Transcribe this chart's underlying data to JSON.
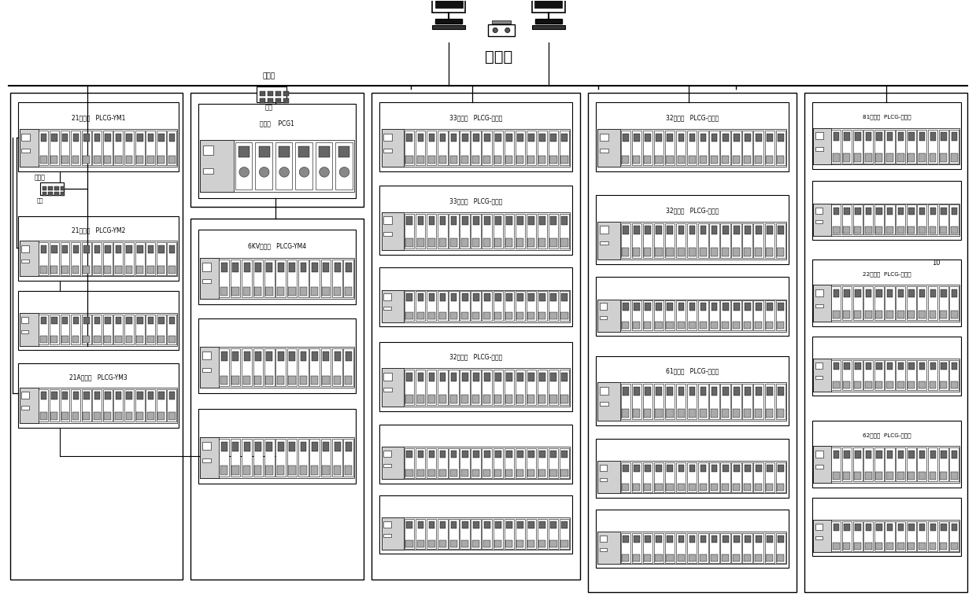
{
  "bg_color": "#ffffff",
  "line_color": "#000000",
  "text_color": "#000000",
  "fig_width": 12.4,
  "fig_height": 7.77,
  "ethernet_label": "以太网",
  "switch_label_top": "交换机",
  "switch_label_bot": "主站",
  "comp1_label": "",
  "comp2_label": "",
  "comp3_label": ""
}
